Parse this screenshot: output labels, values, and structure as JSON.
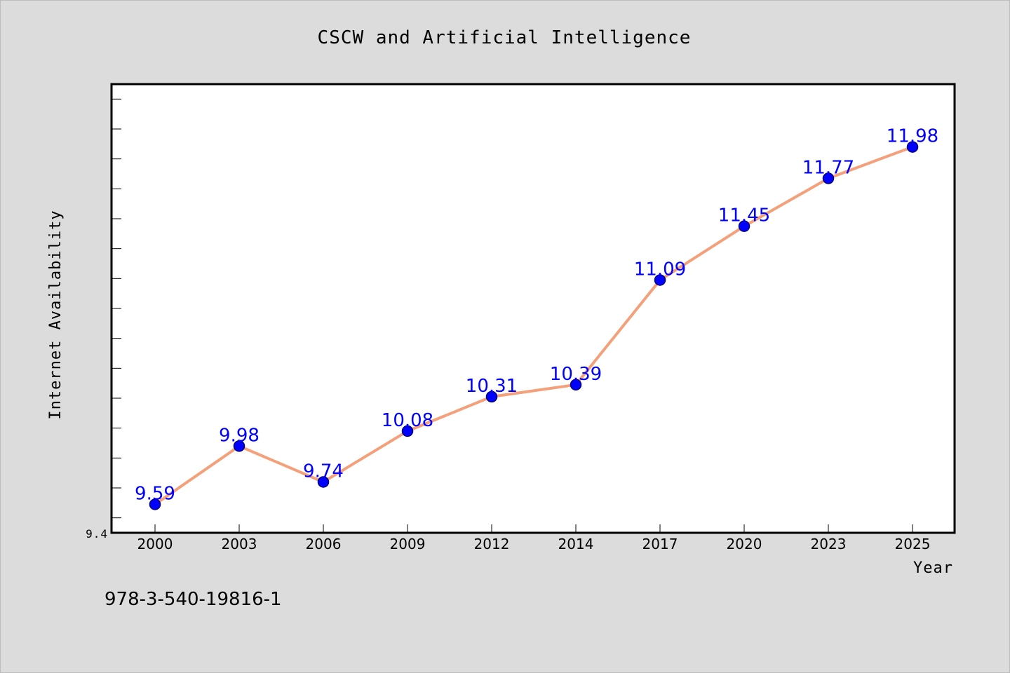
{
  "chart_data": {
    "type": "line",
    "title": "CSCW and Artificial Intelligence",
    "xlabel": "Year",
    "ylabel": "Internet Availability",
    "categories": [
      "2000",
      "2003",
      "2006",
      "2009",
      "2012",
      "2014",
      "2017",
      "2020",
      "2023",
      "2025"
    ],
    "series": [
      {
        "values": [
          9.59,
          9.98,
          9.74,
          10.08,
          10.31,
          10.39,
          11.09,
          11.45,
          11.77,
          11.98
        ]
      }
    ],
    "data_labels": [
      "9.59",
      "9.98",
      "9.74",
      "10.08",
      "10.31",
      "10.39",
      "11.09",
      "11.45",
      "11.77",
      "11.98"
    ],
    "y_tick_labels": [
      "9.4"
    ],
    "ylim": [
      9.4,
      12.4
    ],
    "grid": false,
    "legend": "none",
    "colors": {
      "line": "#f4a07a",
      "marker": "#0000ff",
      "data_label": "#0000ff",
      "plot_background": "#ffffff",
      "page_background": "#dcdcdc"
    }
  },
  "footer": {
    "isbn": "978-3-540-19816-1"
  }
}
